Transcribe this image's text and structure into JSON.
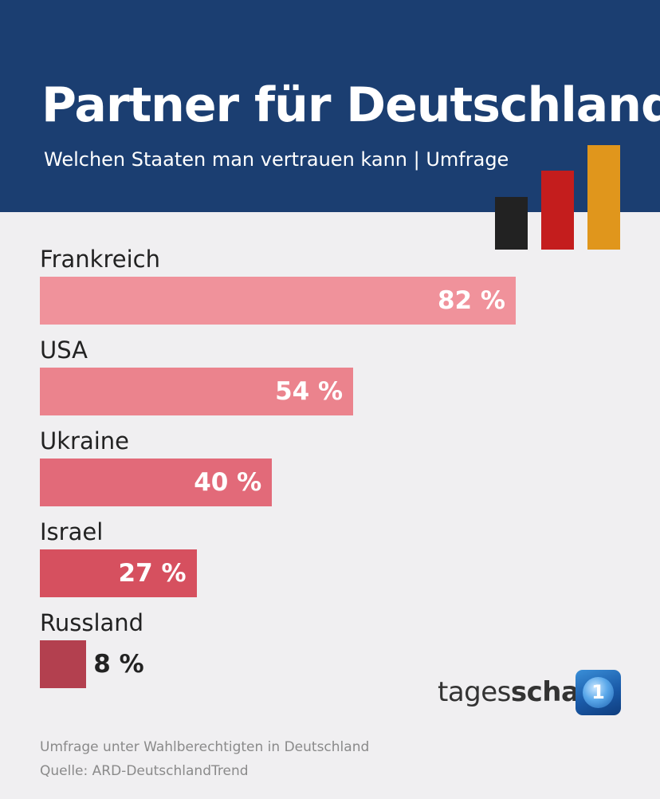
{
  "header": {
    "title": "Partner für Deutschland",
    "subtitle": "Welchen Staaten man vertrauen kann | Umfrage"
  },
  "flag_colors": [
    "#222222",
    "#c41d1d",
    "#e0961c"
  ],
  "chart_data": {
    "type": "bar",
    "orientation": "horizontal",
    "categories": [
      "Frankreich",
      "USA",
      "Ukraine",
      "Israel",
      "Russland"
    ],
    "values": [
      82,
      54,
      40,
      27,
      8
    ],
    "value_labels": [
      "82 %",
      "54 %",
      "40 %",
      "27 %",
      "8 %"
    ],
    "unit": "%",
    "bar_colors": [
      "#f0929b",
      "#eb838d",
      "#e26a79",
      "#d6505f",
      "#b3404f"
    ],
    "title": "Partner für Deutschland",
    "subtitle": "Welchen Staaten man vertrauen kann | Umfrage",
    "xlim": [
      0,
      100
    ],
    "grid": false,
    "legend": "none"
  },
  "branding": {
    "name_light": "tages",
    "name_bold": "schau",
    "logo_glyph": "1",
    "logo_icon": "ard-globe-icon"
  },
  "footer": {
    "note": "Umfrage unter Wahlberechtigten in Deutschland",
    "source": "Quelle: ARD-DeutschlandTrend"
  }
}
